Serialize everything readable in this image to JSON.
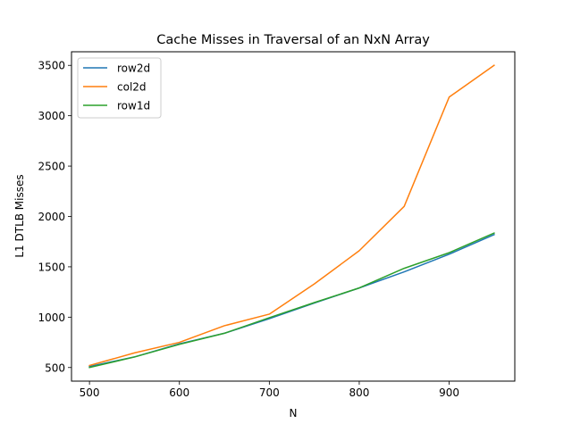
{
  "chart_data": {
    "type": "line",
    "title": "Cache Misses in Traversal of an NxN Array",
    "xlabel": "N",
    "ylabel": "L1 DTLB Misses",
    "xlim": [
      480,
      973
    ],
    "ylim": [
      365,
      3635
    ],
    "x_ticks": [
      500,
      600,
      700,
      800,
      900
    ],
    "y_ticks": [
      500,
      1000,
      1500,
      2000,
      2500,
      3000,
      3500
    ],
    "grid": false,
    "legend_position": "upper-left",
    "x": [
      500,
      550,
      600,
      650,
      700,
      750,
      800,
      850,
      900,
      950
    ],
    "series": [
      {
        "name": "row2d",
        "color": "#1f77b4",
        "values": [
          510,
          605,
          735,
          840,
          985,
          1140,
          1290,
          1450,
          1625,
          1820
        ]
      },
      {
        "name": "col2d",
        "color": "#ff7f0e",
        "values": [
          520,
          645,
          750,
          915,
          1030,
          1330,
          1660,
          2100,
          3185,
          3500
        ]
      },
      {
        "name": "row1d",
        "color": "#2ca02c",
        "values": [
          500,
          605,
          730,
          840,
          995,
          1145,
          1290,
          1485,
          1640,
          1835
        ]
      }
    ]
  }
}
